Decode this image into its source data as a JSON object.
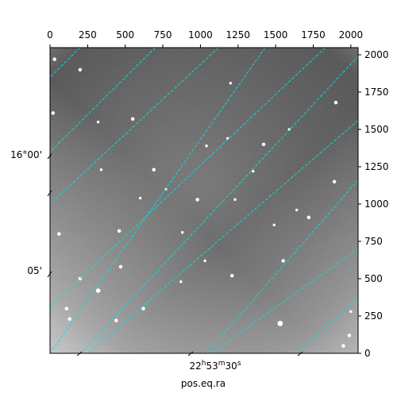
{
  "chart_data": {
    "type": "image",
    "xlabel": "pos.eq.ra",
    "x_ticks": [
      0,
      250,
      500,
      750,
      1000,
      1250,
      1500,
      1750,
      2000
    ],
    "y_ticks": [
      0,
      250,
      500,
      750,
      1000,
      1250,
      1500,
      1750,
      2000
    ],
    "xlim": [
      0,
      2048
    ],
    "ylim": [
      0,
      2048
    ],
    "world_ticks": {
      "dec": [
        {
          "deg": "16°00'",
          "sec": ""
        },
        {
          "deg": "05'",
          "sec": ""
        }
      ],
      "ra": [
        {
          "h": "22",
          "m": "53",
          "s": "30"
        }
      ]
    },
    "world_grid": {
      "color": "#00e5e5",
      "style": "dashed",
      "lines_a": [
        [
          [
            200,
            2048
          ],
          [
            0,
            1850
          ]
        ],
        [
          [
            1120,
            2048
          ],
          [
            0,
            1000
          ]
        ],
        [
          [
            1830,
            2048
          ],
          [
            0,
            310
          ]
        ],
        [
          [
            2048,
            1560
          ],
          [
            250,
            0
          ]
        ],
        [
          [
            2048,
            700
          ],
          [
            1070,
            0
          ]
        ]
      ],
      "lines_b": [
        [
          [
            700,
            2048
          ],
          [
            0,
            1350
          ]
        ],
        [
          [
            1430,
            2048
          ],
          [
            0,
            0
          ]
        ],
        [
          [
            2048,
            1990
          ],
          [
            205,
            0
          ]
        ],
        [
          [
            2048,
            1160
          ],
          [
            1040,
            0
          ]
        ],
        [
          [
            2048,
            380
          ],
          [
            1650,
            0
          ]
        ]
      ]
    },
    "stars": [
      [
        30,
        1970,
        3
      ],
      [
        200,
        1900,
        3
      ],
      [
        20,
        1610,
        3
      ],
      [
        550,
        1570,
        3
      ],
      [
        1420,
        1400,
        3
      ],
      [
        1900,
        1680,
        3
      ],
      [
        690,
        1230,
        3
      ],
      [
        980,
        1030,
        3
      ],
      [
        1720,
        910,
        3
      ],
      [
        1890,
        1150,
        3
      ],
      [
        460,
        820,
        3
      ],
      [
        60,
        800,
        3
      ],
      [
        470,
        580,
        3
      ],
      [
        1210,
        520,
        3
      ],
      [
        1550,
        620,
        3
      ],
      [
        200,
        500,
        3
      ],
      [
        320,
        420,
        4
      ],
      [
        870,
        480,
        2
      ],
      [
        620,
        300,
        3
      ],
      [
        1530,
        200,
        5
      ],
      [
        130,
        230,
        3
      ],
      [
        440,
        220,
        3
      ],
      [
        1990,
        120,
        3
      ],
      [
        1950,
        50,
        3
      ],
      [
        340,
        1230,
        2
      ],
      [
        1180,
        1440,
        2
      ],
      [
        1640,
        960,
        2
      ],
      [
        1590,
        1500,
        2
      ],
      [
        770,
        1100,
        2
      ],
      [
        1040,
        1390,
        2
      ],
      [
        1030,
        620,
        2
      ],
      [
        320,
        1550,
        2
      ],
      [
        880,
        810,
        2
      ],
      [
        1490,
        860,
        2
      ],
      [
        110,
        300,
        3
      ],
      [
        2000,
        280,
        2
      ],
      [
        1200,
        1810,
        2
      ],
      [
        600,
        1040,
        2
      ],
      [
        1350,
        1220,
        2
      ],
      [
        1230,
        1030,
        2
      ]
    ]
  }
}
